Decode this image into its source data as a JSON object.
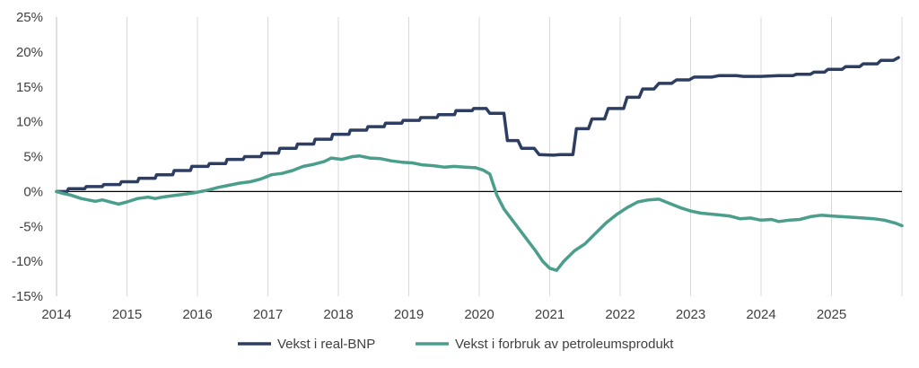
{
  "chart_data": {
    "type": "line",
    "ylim": [
      -15,
      25
    ],
    "xlim": [
      2014,
      2026
    ],
    "y_tick_labels": [
      "25%",
      "20%",
      "15%",
      "10%",
      "5%",
      "0%",
      "-5%",
      "-10%",
      "-15%"
    ],
    "y_ticks": [
      25,
      20,
      15,
      10,
      5,
      0,
      -5,
      -10,
      -15
    ],
    "x_tick_labels": [
      "2014",
      "2015",
      "2016",
      "2017",
      "2018",
      "2019",
      "2020",
      "2021",
      "2022",
      "2023",
      "2024",
      "2025"
    ],
    "x_ticks": [
      2014,
      2015,
      2016,
      2017,
      2018,
      2019,
      2020,
      2021,
      2022,
      2023,
      2024,
      2025
    ],
    "grid": "vertical",
    "zero_line": true,
    "legend_position": "bottom",
    "series": [
      {
        "name": "Vekst i real-BNP",
        "color": "#2E3E63",
        "points": [
          [
            2014.0,
            0.0
          ],
          [
            2014.15,
            0.0
          ],
          [
            2014.17,
            0.4
          ],
          [
            2014.4,
            0.4
          ],
          [
            2014.42,
            0.7
          ],
          [
            2014.65,
            0.7
          ],
          [
            2014.67,
            1.0
          ],
          [
            2014.9,
            1.0
          ],
          [
            2014.92,
            1.4
          ],
          [
            2015.15,
            1.4
          ],
          [
            2015.17,
            1.9
          ],
          [
            2015.4,
            1.9
          ],
          [
            2015.42,
            2.4
          ],
          [
            2015.65,
            2.4
          ],
          [
            2015.67,
            3.0
          ],
          [
            2015.9,
            3.0
          ],
          [
            2015.92,
            3.6
          ],
          [
            2016.15,
            3.6
          ],
          [
            2016.17,
            4.0
          ],
          [
            2016.4,
            4.0
          ],
          [
            2016.42,
            4.6
          ],
          [
            2016.65,
            4.6
          ],
          [
            2016.67,
            5.0
          ],
          [
            2016.9,
            5.0
          ],
          [
            2016.92,
            5.5
          ],
          [
            2017.15,
            5.5
          ],
          [
            2017.17,
            6.2
          ],
          [
            2017.4,
            6.2
          ],
          [
            2017.42,
            6.8
          ],
          [
            2017.65,
            6.8
          ],
          [
            2017.67,
            7.5
          ],
          [
            2017.9,
            7.5
          ],
          [
            2017.92,
            8.2
          ],
          [
            2018.15,
            8.2
          ],
          [
            2018.17,
            8.8
          ],
          [
            2018.4,
            8.8
          ],
          [
            2018.42,
            9.3
          ],
          [
            2018.65,
            9.3
          ],
          [
            2018.67,
            9.8
          ],
          [
            2018.9,
            9.8
          ],
          [
            2018.92,
            10.2
          ],
          [
            2019.15,
            10.2
          ],
          [
            2019.17,
            10.6
          ],
          [
            2019.4,
            10.6
          ],
          [
            2019.42,
            11.0
          ],
          [
            2019.65,
            11.0
          ],
          [
            2019.67,
            11.6
          ],
          [
            2019.9,
            11.6
          ],
          [
            2019.92,
            11.9
          ],
          [
            2020.1,
            11.9
          ],
          [
            2020.15,
            11.2
          ],
          [
            2020.35,
            11.2
          ],
          [
            2020.4,
            7.3
          ],
          [
            2020.55,
            7.3
          ],
          [
            2020.6,
            6.2
          ],
          [
            2020.78,
            6.2
          ],
          [
            2020.85,
            5.3
          ],
          [
            2021.05,
            5.2
          ],
          [
            2021.15,
            5.3
          ],
          [
            2021.33,
            5.3
          ],
          [
            2021.38,
            9.0
          ],
          [
            2021.55,
            9.0
          ],
          [
            2021.6,
            10.4
          ],
          [
            2021.78,
            10.4
          ],
          [
            2021.83,
            11.9
          ],
          [
            2022.05,
            11.9
          ],
          [
            2022.1,
            13.5
          ],
          [
            2022.27,
            13.5
          ],
          [
            2022.32,
            14.7
          ],
          [
            2022.48,
            14.7
          ],
          [
            2022.55,
            15.5
          ],
          [
            2022.73,
            15.5
          ],
          [
            2022.8,
            16.0
          ],
          [
            2022.98,
            16.0
          ],
          [
            2023.05,
            16.4
          ],
          [
            2023.3,
            16.4
          ],
          [
            2023.4,
            16.6
          ],
          [
            2023.65,
            16.6
          ],
          [
            2023.75,
            16.5
          ],
          [
            2024.0,
            16.5
          ],
          [
            2024.25,
            16.6
          ],
          [
            2024.45,
            16.6
          ],
          [
            2024.5,
            16.8
          ],
          [
            2024.7,
            16.8
          ],
          [
            2024.75,
            17.1
          ],
          [
            2024.9,
            17.1
          ],
          [
            2024.95,
            17.5
          ],
          [
            2025.15,
            17.5
          ],
          [
            2025.2,
            17.9
          ],
          [
            2025.4,
            17.9
          ],
          [
            2025.45,
            18.3
          ],
          [
            2025.65,
            18.3
          ],
          [
            2025.7,
            18.8
          ],
          [
            2025.88,
            18.8
          ],
          [
            2025.95,
            19.2
          ]
        ]
      },
      {
        "name": "Vekst i forbruk av petroleumsprodukt",
        "color": "#4A9E8B",
        "points": [
          [
            2014.0,
            0.0
          ],
          [
            2014.1,
            -0.3
          ],
          [
            2014.2,
            -0.5
          ],
          [
            2014.35,
            -1.0
          ],
          [
            2014.55,
            -1.4
          ],
          [
            2014.65,
            -1.2
          ],
          [
            2014.8,
            -1.6
          ],
          [
            2014.88,
            -1.8
          ],
          [
            2015.0,
            -1.5
          ],
          [
            2015.15,
            -1.0
          ],
          [
            2015.3,
            -0.8
          ],
          [
            2015.4,
            -1.0
          ],
          [
            2015.5,
            -0.8
          ],
          [
            2015.65,
            -0.6
          ],
          [
            2015.8,
            -0.4
          ],
          [
            2015.95,
            -0.2
          ],
          [
            2016.15,
            0.2
          ],
          [
            2016.3,
            0.6
          ],
          [
            2016.45,
            0.9
          ],
          [
            2016.6,
            1.2
          ],
          [
            2016.75,
            1.4
          ],
          [
            2016.9,
            1.8
          ],
          [
            2017.05,
            2.4
          ],
          [
            2017.2,
            2.6
          ],
          [
            2017.35,
            3.0
          ],
          [
            2017.5,
            3.6
          ],
          [
            2017.65,
            3.9
          ],
          [
            2017.8,
            4.3
          ],
          [
            2017.9,
            4.8
          ],
          [
            2018.05,
            4.6
          ],
          [
            2018.2,
            5.0
          ],
          [
            2018.3,
            5.1
          ],
          [
            2018.45,
            4.8
          ],
          [
            2018.6,
            4.7
          ],
          [
            2018.75,
            4.4
          ],
          [
            2018.9,
            4.2
          ],
          [
            2019.05,
            4.1
          ],
          [
            2019.2,
            3.8
          ],
          [
            2019.35,
            3.7
          ],
          [
            2019.5,
            3.5
          ],
          [
            2019.65,
            3.6
          ],
          [
            2019.8,
            3.5
          ],
          [
            2019.95,
            3.4
          ],
          [
            2020.05,
            3.1
          ],
          [
            2020.15,
            2.5
          ],
          [
            2020.25,
            -0.5
          ],
          [
            2020.35,
            -2.5
          ],
          [
            2020.5,
            -4.5
          ],
          [
            2020.65,
            -6.5
          ],
          [
            2020.8,
            -8.5
          ],
          [
            2020.9,
            -10.0
          ],
          [
            2021.0,
            -11.0
          ],
          [
            2021.1,
            -11.3
          ],
          [
            2021.2,
            -10.0
          ],
          [
            2021.35,
            -8.5
          ],
          [
            2021.5,
            -7.5
          ],
          [
            2021.65,
            -6.0
          ],
          [
            2021.8,
            -4.5
          ],
          [
            2021.95,
            -3.3
          ],
          [
            2022.1,
            -2.3
          ],
          [
            2022.25,
            -1.5
          ],
          [
            2022.4,
            -1.2
          ],
          [
            2022.55,
            -1.1
          ],
          [
            2022.7,
            -1.7
          ],
          [
            2022.85,
            -2.3
          ],
          [
            2023.0,
            -2.8
          ],
          [
            2023.15,
            -3.1
          ],
          [
            2023.35,
            -3.3
          ],
          [
            2023.55,
            -3.5
          ],
          [
            2023.7,
            -3.9
          ],
          [
            2023.85,
            -3.8
          ],
          [
            2024.0,
            -4.1
          ],
          [
            2024.15,
            -4.0
          ],
          [
            2024.25,
            -4.3
          ],
          [
            2024.4,
            -4.1
          ],
          [
            2024.55,
            -4.0
          ],
          [
            2024.7,
            -3.6
          ],
          [
            2024.85,
            -3.4
          ],
          [
            2025.0,
            -3.5
          ],
          [
            2025.15,
            -3.6
          ],
          [
            2025.3,
            -3.7
          ],
          [
            2025.45,
            -3.8
          ],
          [
            2025.6,
            -3.9
          ],
          [
            2025.75,
            -4.1
          ],
          [
            2025.9,
            -4.5
          ],
          [
            2026.0,
            -4.9
          ]
        ]
      }
    ]
  }
}
